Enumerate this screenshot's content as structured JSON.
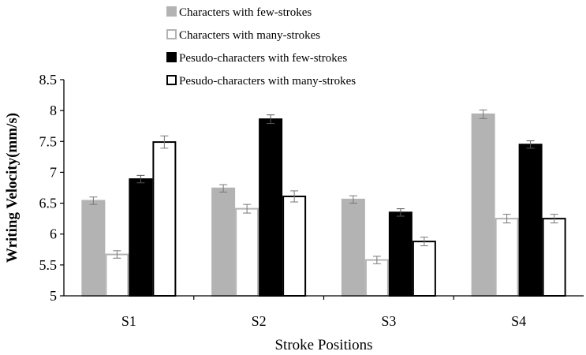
{
  "chart_data": {
    "type": "bar",
    "title": "",
    "xlabel": "Stroke Positions",
    "ylabel": "Writing Velocity(mm/s)",
    "ylim": [
      5,
      8.5
    ],
    "yticks": [
      "5",
      "5.5",
      "6",
      "6.5",
      "7",
      "7.5",
      "8",
      "8.5"
    ],
    "categories": [
      "S1",
      "S2",
      "S3",
      "S4"
    ],
    "grid": false,
    "legend_position": "top",
    "error_bars": true,
    "series": [
      {
        "name": "Characters with few-strokes",
        "values": [
          6.54,
          6.74,
          6.56,
          7.94
        ],
        "errors": [
          0.06,
          0.06,
          0.06,
          0.07
        ],
        "fill": "#b3b3b3",
        "stroke": "#b3b3b3"
      },
      {
        "name": "Characters with many-strokes",
        "values": [
          5.67,
          6.41,
          5.58,
          6.25
        ],
        "errors": [
          0.06,
          0.07,
          0.06,
          0.07
        ],
        "fill": "#ffffff",
        "stroke": "#b3b3b3"
      },
      {
        "name": "Pesudo-characters with few-strokes",
        "values": [
          6.89,
          7.86,
          6.35,
          7.45
        ],
        "errors": [
          0.06,
          0.07,
          0.06,
          0.06
        ],
        "fill": "#000000",
        "stroke": "#000000"
      },
      {
        "name": "Pesudo-characters with many-strokes",
        "values": [
          7.49,
          6.61,
          5.88,
          6.25
        ],
        "errors": [
          0.1,
          0.09,
          0.07,
          0.07
        ],
        "fill": "#ffffff",
        "stroke": "#000000"
      }
    ]
  }
}
